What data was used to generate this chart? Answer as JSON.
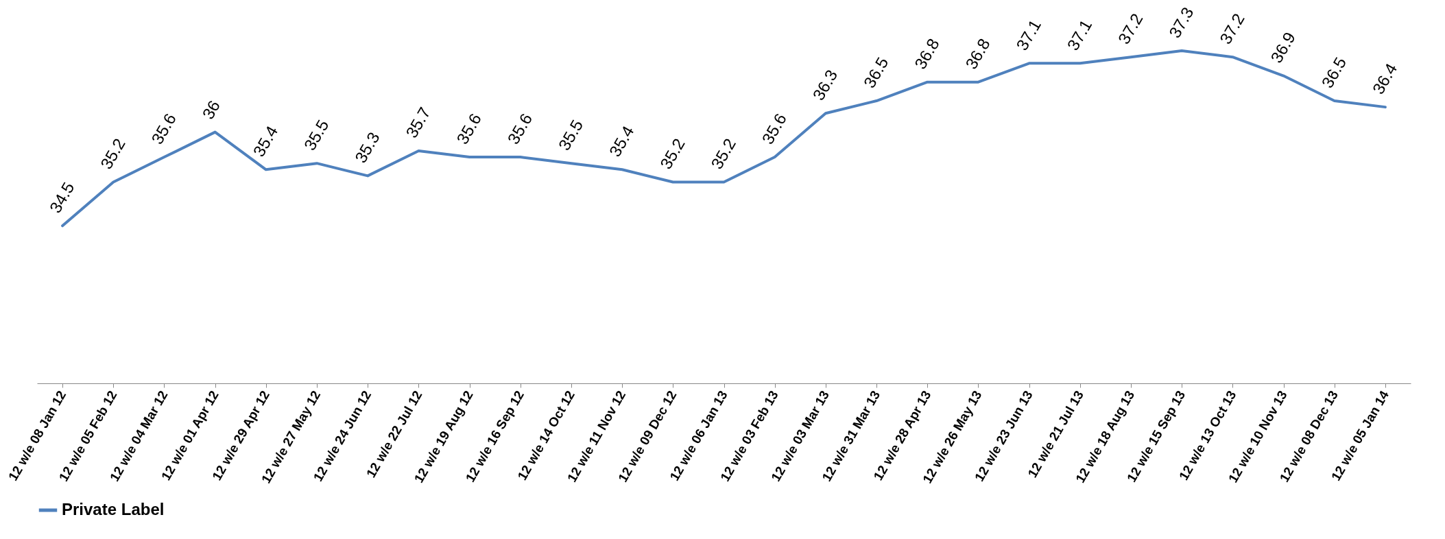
{
  "chart_data": {
    "type": "line",
    "categories": [
      "12 w/e 08 Jan 12",
      "12 w/e 05 Feb 12",
      "12 w/e 04 Mar 12",
      "12 w/e 01 Apr 12",
      "12 w/e 29 Apr 12",
      "12 w/e 27 May 12",
      "12 w/e 24 Jun 12",
      "12 w/e 22 Jul 12",
      "12 w/e 19 Aug 12",
      "12 w/e 16 Sep 12",
      "12 w/e 14 Oct 12",
      "12 w/e 11 Nov 12",
      "12 w/e 09 Dec 12",
      "12 w/e 06 Jan 13",
      "12 w/e 03 Feb 13",
      "12 w/e 03 Mar 13",
      "12 w/e 31 Mar 13",
      "12 w/e 28 Apr 13",
      "12 w/e 26 May 13",
      "12 w/e 23 Jun 13",
      "12 w/e 21 Jul 13",
      "12 w/e 18 Aug 13",
      "12 w/e 15 Sep 13",
      "12 w/e 13 Oct 13",
      "12 w/e 10 Nov 13",
      "12 w/e 08 Dec 13",
      "12 w/e 05 Jan 14"
    ],
    "series": [
      {
        "name": "Private Label",
        "color": "#4f81bd",
        "values": [
          34.5,
          35.2,
          35.6,
          36,
          35.4,
          35.5,
          35.3,
          35.7,
          35.6,
          35.6,
          35.5,
          35.4,
          35.2,
          35.2,
          35.6,
          36.3,
          36.5,
          36.8,
          36.8,
          37.1,
          37.1,
          37.2,
          37.3,
          37.2,
          36.9,
          36.5,
          36.4
        ]
      }
    ],
    "data_labels": true,
    "legend": "bottom"
  }
}
